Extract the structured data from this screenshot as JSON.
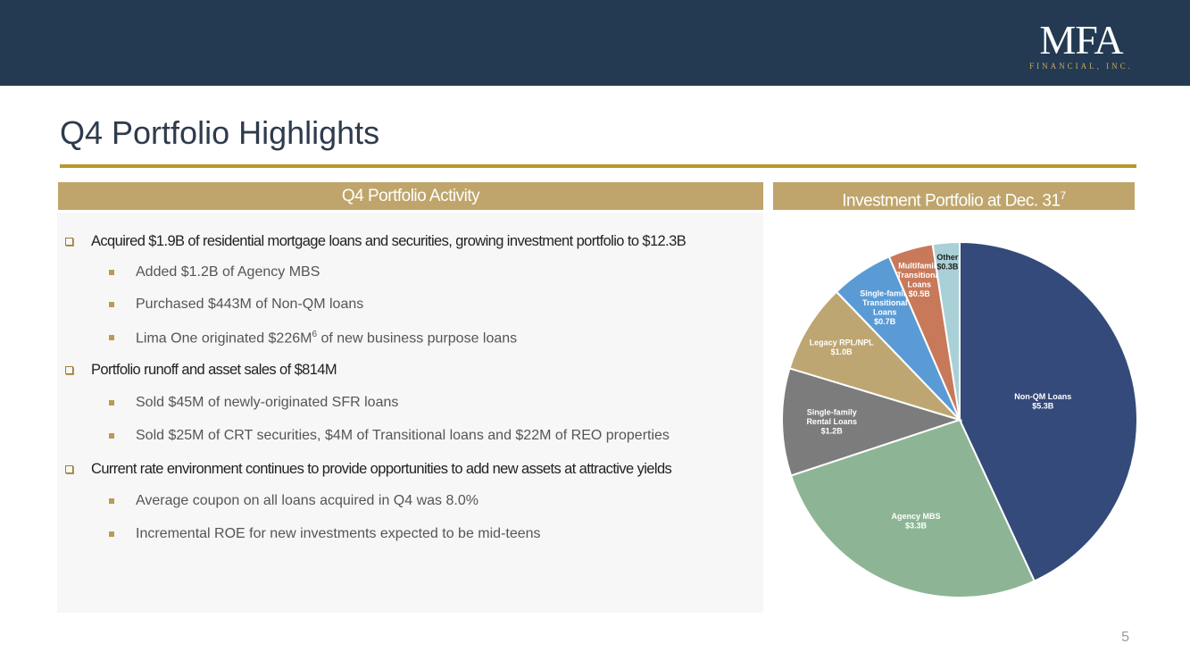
{
  "header": {
    "logo_mark": "MFA",
    "logo_sub": "FINANCIAL, INC."
  },
  "title": "Q4 Portfolio Highlights",
  "left_panel": {
    "heading": "Q4 Portfolio Activity",
    "bullets": [
      {
        "text": "Acquired $1.9B of residential mortgage loans and securities, growing investment portfolio to $12.3B",
        "subs": [
          {
            "text": "Added $1.2B of Agency MBS"
          },
          {
            "text": "Purchased $443M of Non-QM loans"
          },
          {
            "pre": "Lima One originated $226M",
            "sup": "6",
            "post": " of new business purpose loans"
          }
        ]
      },
      {
        "text": "Portfolio runoff and asset sales of $814M",
        "subs": [
          {
            "text": "Sold $45M of newly-originated SFR loans"
          },
          {
            "text": "Sold $25M of CRT securities, $4M of Transitional loans and $22M of REO properties"
          }
        ]
      },
      {
        "text": "Current rate environment continues to provide opportunities to add new assets at attractive yields",
        "subs": [
          {
            "text": "Average coupon on all loans acquired in Q4 was 8.0%"
          },
          {
            "text": "Incremental ROE for new investments expected to be mid-teens"
          }
        ]
      }
    ]
  },
  "right_panel": {
    "heading": "Investment Portfolio at Dec. 31",
    "heading_sup": "7"
  },
  "chart_data": {
    "type": "pie",
    "title": "Investment Portfolio at Dec. 31",
    "start": "12 o'clock, clockwise",
    "slices": [
      {
        "name": "Non-QM Loans",
        "value": 5.3,
        "label": [
          "Non-QM Loans",
          "$5.3B"
        ],
        "color": "#344a7a"
      },
      {
        "name": "Agency MBS",
        "value": 3.3,
        "label": [
          "Agency MBS",
          "$3.3B"
        ],
        "color": "#8db595"
      },
      {
        "name": "Single-family Rental Loans",
        "value": 1.2,
        "label": [
          "Single-family",
          "Rental Loans",
          "$1.2B"
        ],
        "color": "#7c7c7c"
      },
      {
        "name": "Legacy RPL/NPL",
        "value": 1.0,
        "label": [
          "Legacy RPL/NPL",
          "$1.0B"
        ],
        "color": "#bea672"
      },
      {
        "name": "Single-family Transitional Loans",
        "value": 0.7,
        "label": [
          "Single-family",
          "Transitional",
          "Loans",
          "$0.7B"
        ],
        "color": "#5b9bd5"
      },
      {
        "name": "Multifamily Transitional Loans",
        "value": 0.5,
        "label": [
          "Multifamily",
          "Transitional",
          "Loans",
          "$0.5B"
        ],
        "color": "#c8795a"
      },
      {
        "name": "Other",
        "value": 0.3,
        "label": [
          "Other",
          "$0.3B"
        ],
        "color": "#a9d0d6",
        "dark_label": true
      }
    ]
  },
  "page_number": "5"
}
